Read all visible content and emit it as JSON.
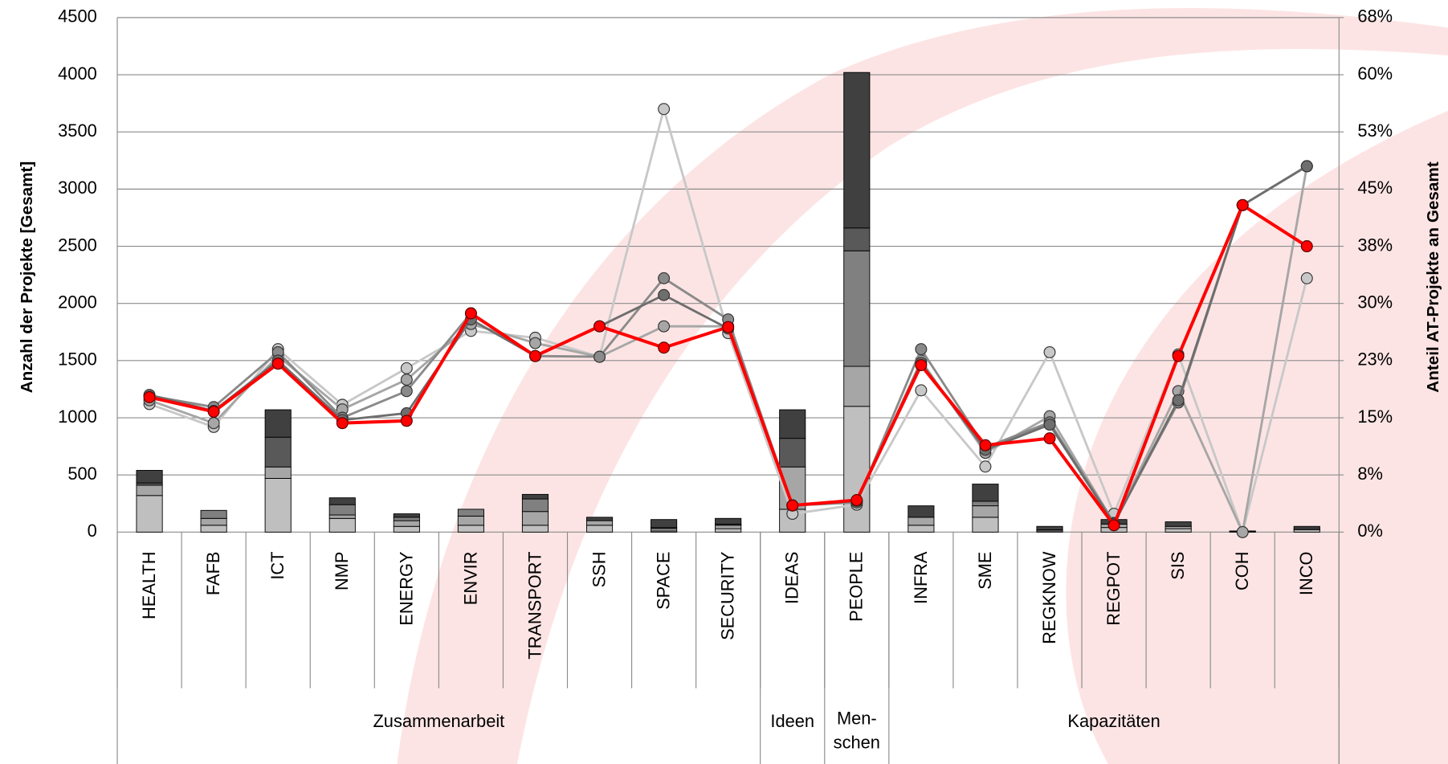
{
  "chart_data": {
    "type": "combo",
    "ylabel": "Anzahl der Projekte [Gesamt]",
    "y2label": "Anteil  AT-Projekte an Gesamt",
    "categories": [
      "HEALTH",
      "FAFB",
      "ICT",
      "NMP",
      "ENERGY",
      "ENVIR",
      "TRANSPORT",
      "SSH",
      "SPACE",
      "SECURITY",
      "IDEAS",
      "PEOPLE",
      "INFRA",
      "SME",
      "REGKNOW",
      "REGPOT",
      "SIS",
      "COH",
      "INCO"
    ],
    "groups": [
      {
        "label": [
          "Zusammenarbeit"
        ],
        "count": 10
      },
      {
        "label": [
          "Ideen"
        ],
        "count": 1
      },
      {
        "label": [
          "Men-",
          "schen"
        ],
        "count": 1
      },
      {
        "label": [
          "Kapazitäten"
        ],
        "count": 7
      }
    ],
    "ylim": [
      0,
      4500
    ],
    "yticks": [
      0,
      500,
      1000,
      1500,
      2000,
      2500,
      3000,
      3500,
      4000,
      4500
    ],
    "y2lim": [
      0,
      67.5
    ],
    "y2ticks": [
      {
        "value": 0,
        "label": "0%"
      },
      {
        "value": 7.5,
        "label": "8%"
      },
      {
        "value": 15,
        "label": "15%"
      },
      {
        "value": 22.5,
        "label": "23%"
      },
      {
        "value": 30,
        "label": "30%"
      },
      {
        "value": 37.5,
        "label": "38%"
      },
      {
        "value": 45,
        "label": "45%"
      },
      {
        "value": 52.5,
        "label": "53%"
      },
      {
        "value": 60,
        "label": "60%"
      },
      {
        "value": 67.5,
        "label": "68%"
      }
    ],
    "grid": true,
    "series": [
      {
        "type": "bar",
        "color": "#bfbfbf",
        "values": [
          320,
          60,
          470,
          120,
          50,
          60,
          60,
          60,
          10,
          30,
          200,
          1100,
          60,
          130,
          10,
          40,
          30,
          5,
          20
        ]
      },
      {
        "type": "bar",
        "color": "#a6a6a6",
        "values": [
          90,
          60,
          100,
          30,
          50,
          80,
          120,
          40,
          20,
          30,
          370,
          350,
          70,
          100,
          10,
          30,
          20,
          0,
          10
        ]
      },
      {
        "type": "bar",
        "color": "#808080",
        "values": [
          0,
          70,
          0,
          90,
          30,
          60,
          110,
          0,
          0,
          0,
          0,
          1010,
          0,
          40,
          0,
          0,
          0,
          0,
          0
        ]
      },
      {
        "type": "bar",
        "color": "#595959",
        "values": [
          20,
          0,
          260,
          0,
          0,
          0,
          0,
          0,
          10,
          10,
          250,
          200,
          0,
          0,
          0,
          0,
          0,
          0,
          0
        ]
      },
      {
        "type": "bar",
        "color": "#404040",
        "values": [
          110,
          0,
          240,
          60,
          30,
          0,
          40,
          30,
          70,
          50,
          250,
          1360,
          100,
          150,
          30,
          40,
          40,
          5,
          20
        ]
      },
      {
        "type": "line",
        "axis": "y2",
        "color": "#c8c8c8",
        "values": [
          16.8,
          13.8,
          24,
          16.7,
          21.5,
          26.4,
          25.5,
          23,
          55.5,
          26.1,
          2.4,
          3.6,
          18.6,
          8.6,
          23.6,
          2.4,
          23.3,
          0,
          33.3
        ]
      },
      {
        "type": "line",
        "axis": "y2",
        "color": "#a6a6a6",
        "values": [
          17.3,
          14.3,
          23.1,
          16.1,
          20,
          27.3,
          24.8,
          23,
          27,
          27,
          3.5,
          3.9,
          22.5,
          10.4,
          15.2,
          1.2,
          18.5,
          0,
          48
        ]
      },
      {
        "type": "line",
        "axis": "y2",
        "color": "#8a8a8a",
        "values": [
          17.9,
          16.4,
          23.6,
          15,
          18.5,
          28.7,
          23.1,
          23,
          33.3,
          27.9,
          3.5,
          3.9,
          24,
          11.1,
          14.4,
          1.2,
          17,
          42.9,
          48
        ]
      },
      {
        "type": "line",
        "axis": "y2",
        "color": "#6e6e6e",
        "values": [
          18,
          15.9,
          22.5,
          14.7,
          15.6,
          27.9,
          23.1,
          27,
          31.1,
          26.7,
          3.5,
          4.1,
          22.2,
          10.8,
          14.1,
          1.1,
          17.3,
          42.9,
          48
        ]
      },
      {
        "type": "line",
        "axis": "y2",
        "color": "#ff0000",
        "values": [
          17.7,
          15.8,
          22.1,
          14.3,
          14.6,
          28.7,
          23.1,
          27,
          24.2,
          26.9,
          3.5,
          4.2,
          21.9,
          11.4,
          12.3,
          0.9,
          23.1,
          42.9,
          37.5
        ]
      }
    ]
  }
}
